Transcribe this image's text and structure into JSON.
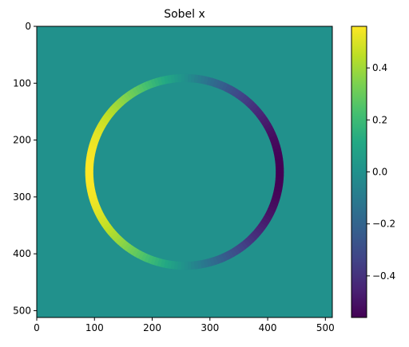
{
  "chart_data": {
    "type": "heatmap",
    "title": "Sobel x",
    "xlabel": "",
    "ylabel": "",
    "image_extent": [
      0,
      512
    ],
    "xlim": [
      0,
      512
    ],
    "ylim": [
      512,
      0
    ],
    "xticks": [
      0,
      100,
      200,
      300,
      400,
      500
    ],
    "yticks": [
      0,
      100,
      200,
      300,
      400,
      500
    ],
    "xtick_labels": [
      "0",
      "100",
      "200",
      "300",
      "400",
      "500"
    ],
    "ytick_labels": [
      "0",
      "100",
      "200",
      "300",
      "400",
      "500"
    ],
    "colormap": "viridis",
    "clim": [
      -0.56,
      0.56
    ],
    "colorbar_ticks": [
      -0.4,
      -0.2,
      0.0,
      0.2,
      0.4
    ],
    "colorbar_tick_labels": [
      "−0.4",
      "−0.2",
      "0.0",
      "0.2",
      "0.4"
    ],
    "ring": {
      "center_x": 256,
      "center_y": 256,
      "radius": 165,
      "width": 14,
      "peak_value": 0.56,
      "pattern": "value proportional to cos(angle): max at left edge, min at right edge, zero at top and bottom"
    },
    "grid": false,
    "legend": "none",
    "colors": {
      "background_value_color": "#21918c",
      "max_color": "#fde725",
      "min_color": "#440154"
    }
  }
}
